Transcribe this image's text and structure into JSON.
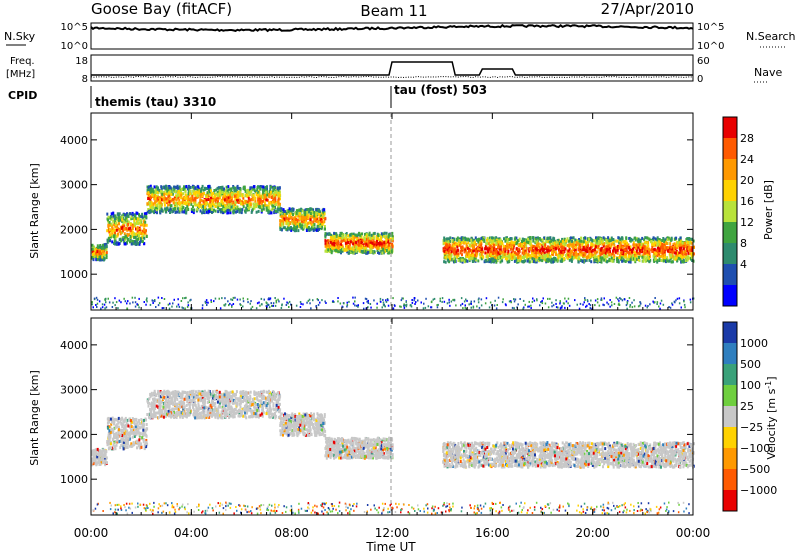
{
  "header": {
    "station": "Goose Bay (fitACF)",
    "beam": "Beam 11",
    "date": "27/Apr/2010"
  },
  "left_labels": {
    "nsky": "N.Sky",
    "freq": "Freq.",
    "freq_unit": "[MHz]",
    "cpid": "CPID"
  },
  "right_labels": {
    "nsearch": "N.Search",
    "nave": "Nave"
  },
  "cpid_segments": [
    {
      "label": "themis (tau) 3310",
      "start_hour": 0
    },
    {
      "label": "tau (fost) 503",
      "start_hour": 12
    }
  ],
  "noise_axis": {
    "left_ticks": [
      "10^5",
      "10^0"
    ],
    "right_ticks": [
      "10^5",
      "10^0"
    ]
  },
  "freq_axis": {
    "left_ticks": [
      "18",
      "8"
    ],
    "right_ticks": [
      "60",
      "0"
    ]
  },
  "chart_data": [
    {
      "type": "heatmap",
      "name": "Power",
      "ylabel": "Slant Range [km]",
      "y_ticks": [
        "4000",
        "3000",
        "2000",
        "1000"
      ],
      "ylim": [
        200,
        4600
      ],
      "colorbar": {
        "label": "Power [dB]",
        "ticks": [
          "28",
          "24",
          "20",
          "16",
          "12",
          "8",
          "4"
        ],
        "colors": [
          "#e80000",
          "#ff5a00",
          "#ff9900",
          "#ffd200",
          "#b8e23a",
          "#3fa43f",
          "#2e8b6e",
          "#1f4fb0",
          "#0000ff"
        ]
      },
      "scatter_bands": [
        {
          "t_start": 0.0,
          "t_end": 0.6,
          "range_start": 1350,
          "range_end": 1700
        },
        {
          "t_start": 0.6,
          "t_end": 2.2,
          "range_start": 1700,
          "range_end": 2400
        },
        {
          "t_start": 2.2,
          "t_end": 7.5,
          "range_start": 2400,
          "range_end": 3000
        },
        {
          "t_start": 7.5,
          "t_end": 9.3,
          "range_start": 2000,
          "range_end": 2500
        },
        {
          "t_start": 9.3,
          "t_end": 12.0,
          "range_start": 1500,
          "range_end": 1950
        },
        {
          "t_start": 14.0,
          "t_end": 24.0,
          "range_start": 1300,
          "range_end": 1850
        }
      ]
    },
    {
      "type": "heatmap",
      "name": "Velocity",
      "ylabel": "Slant Range [km]",
      "y_ticks": [
        "4000",
        "3000",
        "2000",
        "1000"
      ],
      "ylim": [
        200,
        4600
      ],
      "colorbar": {
        "label": "Velocity [m s",
        "label_sup": "-1",
        "ticks": [
          "1000",
          "500",
          "100",
          "25",
          "−25",
          "−100",
          "−500",
          "−1000"
        ],
        "colors": [
          "#1a3aa8",
          "#2f7fbf",
          "#3aa27a",
          "#6fcf3f",
          "#c8c8c8",
          "#ffd200",
          "#ff9900",
          "#ff5a00",
          "#e80000"
        ]
      }
    }
  ],
  "time_axis": {
    "label": "Time UT",
    "ticks": [
      "00:00",
      "04:00",
      "08:00",
      "12:00",
      "16:00",
      "20:00",
      "00:00"
    ]
  }
}
